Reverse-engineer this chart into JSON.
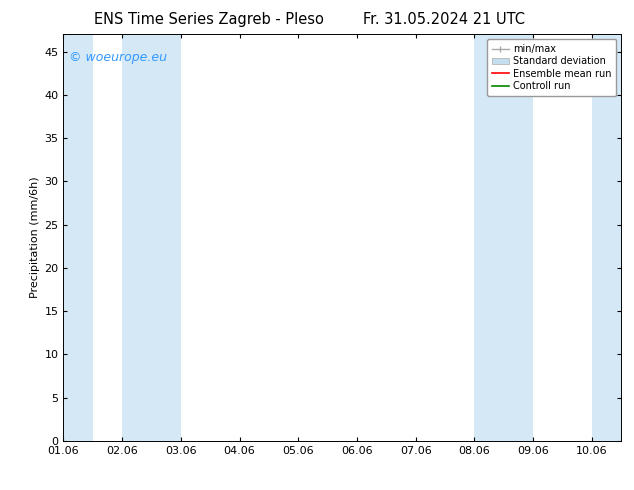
{
  "title_left": "ENS Time Series Zagreb - Pleso",
  "title_right": "Fr. 31.05.2024 21 UTC",
  "ylabel": "Precipitation (mm/6h)",
  "xlabel_ticks": [
    "01.06",
    "02.06",
    "03.06",
    "04.06",
    "05.06",
    "06.06",
    "07.06",
    "08.06",
    "09.06",
    "10.06"
  ],
  "xlim_min": 0,
  "xlim_max": 9,
  "ylim_min": 0,
  "ylim_max": 47,
  "yticks": [
    0,
    5,
    10,
    15,
    20,
    25,
    30,
    35,
    40,
    45
  ],
  "background_color": "#ffffff",
  "plot_bg_color": "#ffffff",
  "band_color": "#d4e8f5",
  "shaded_bands": [
    [
      0.0,
      0.5
    ],
    [
      1.0,
      2.0
    ],
    [
      7.0,
      8.0
    ],
    [
      9.0,
      9.5
    ]
  ],
  "watermark_text": "© woeurope.eu",
  "watermark_color": "#3399ff",
  "legend_labels": [
    "min/max",
    "Standard deviation",
    "Ensemble mean run",
    "Controll run"
  ],
  "legend_minmax_color": "#aaaaaa",
  "legend_std_color": "#c5dff0",
  "legend_mean_color": "#ff0000",
  "legend_ctrl_color": "#008800",
  "font_size": 8,
  "title_font_size": 10.5
}
